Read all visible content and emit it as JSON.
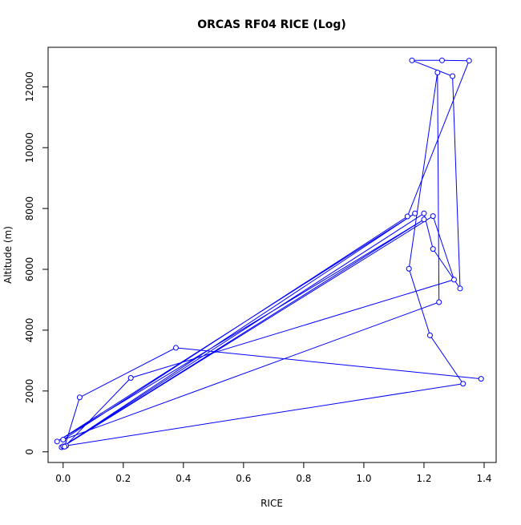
{
  "chart_data": {
    "type": "line",
    "title": "ORCAS RF04 RICE (Log)",
    "xlabel": "RICE",
    "ylabel": "Altitude (m)",
    "xlim": [
      -0.05,
      1.44
    ],
    "ylim": [
      -350,
      13300
    ],
    "xticks": [
      0.0,
      0.2,
      0.4,
      0.6,
      0.8,
      1.0,
      1.2,
      1.4
    ],
    "xtick_labels": [
      "0.0",
      "0.2",
      "0.4",
      "0.6",
      "0.8",
      "1.0",
      "1.2",
      "1.4"
    ],
    "yticks": [
      0,
      2000,
      4000,
      6000,
      8000,
      10000,
      12000
    ],
    "ytick_labels": [
      "0",
      "2000",
      "4000",
      "6000",
      "8000",
      "10000",
      "12000"
    ],
    "grid": false,
    "legend": "none",
    "series": [
      {
        "color": "#0000ff",
        "marker": "open-circle",
        "points": [
          {
            "x": 0.01,
            "y": 200
          },
          {
            "x": 1.33,
            "y": 2240
          },
          {
            "x": 1.22,
            "y": 3830
          },
          {
            "x": 1.15,
            "y": 6020
          },
          {
            "x": 1.245,
            "y": 12470
          },
          {
            "x": 1.25,
            "y": 4920
          },
          {
            "x": 0.0,
            "y": 400
          },
          {
            "x": 1.145,
            "y": 7740
          },
          {
            "x": 1.35,
            "y": 12860
          },
          {
            "x": 1.26,
            "y": 12870
          },
          {
            "x": 1.16,
            "y": 12870
          },
          {
            "x": 1.295,
            "y": 12350
          },
          {
            "x": 1.32,
            "y": 5370
          },
          {
            "x": 1.23,
            "y": 6670
          },
          {
            "x": 1.2,
            "y": 7840
          },
          {
            "x": -0.005,
            "y": 150
          },
          {
            "x": 1.17,
            "y": 7840
          },
          {
            "x": -0.02,
            "y": 340
          },
          {
            "x": 1.2,
            "y": 7640
          },
          {
            "x": 0.0,
            "y": 180
          },
          {
            "x": 1.23,
            "y": 7750
          },
          {
            "x": 1.3,
            "y": 5660
          },
          {
            "x": 0.225,
            "y": 2430
          },
          {
            "x": 0.005,
            "y": 170
          },
          {
            "x": 0.055,
            "y": 1790
          },
          {
            "x": 0.375,
            "y": 3420
          },
          {
            "x": 1.39,
            "y": 2400
          }
        ]
      }
    ]
  }
}
